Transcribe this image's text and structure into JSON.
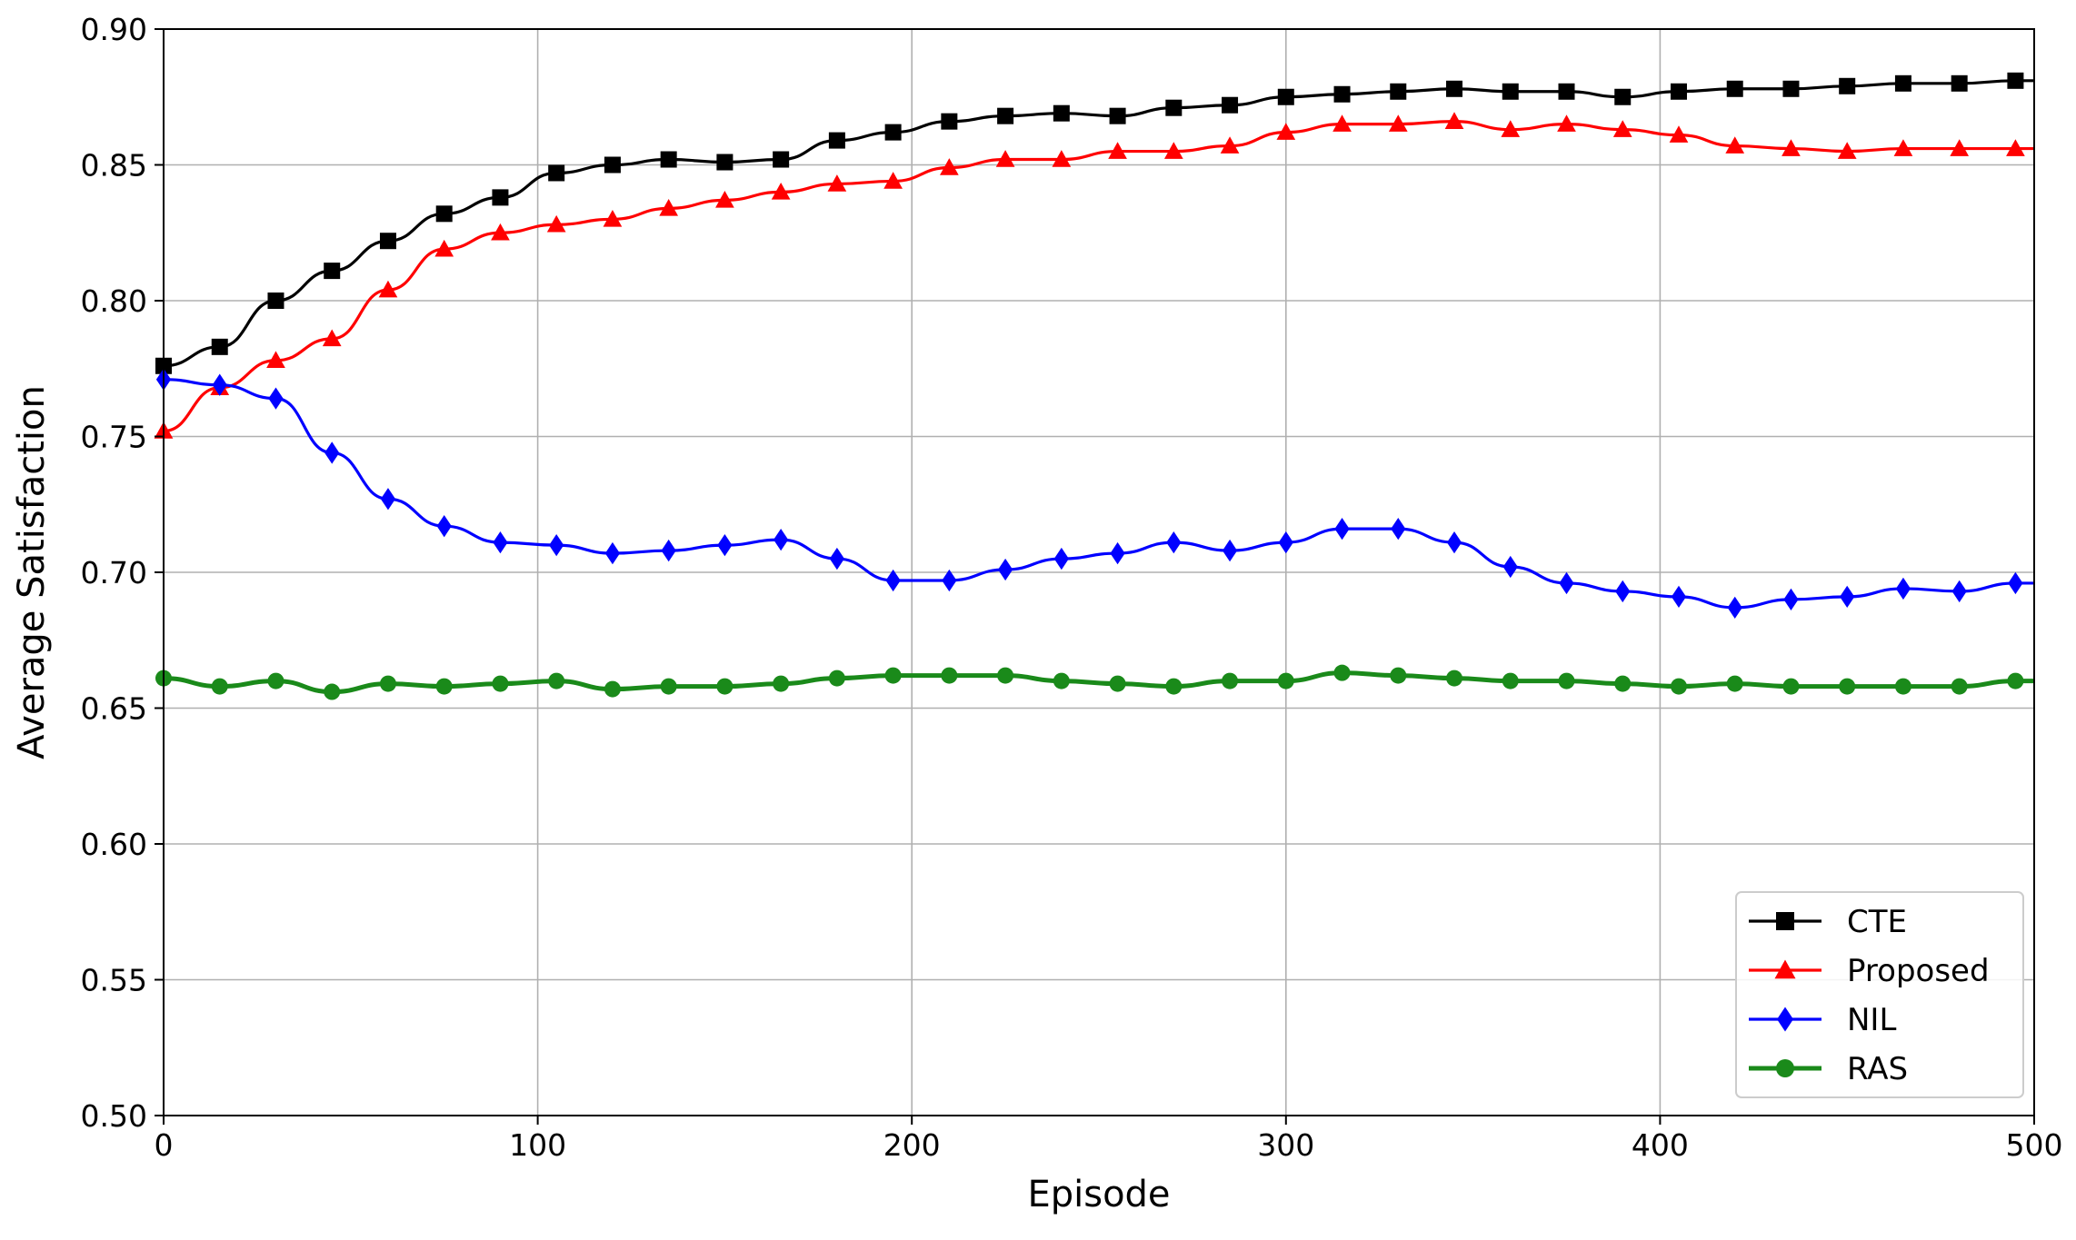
{
  "chart_data": {
    "type": "line",
    "title": "",
    "xlabel": "Episode",
    "ylabel": "Average Satisfaction",
    "xlim": [
      0,
      500
    ],
    "ylim": [
      0.5,
      0.9
    ],
    "x_ticks": [
      0,
      100,
      200,
      300,
      400,
      500
    ],
    "x_tick_labels": [
      "0",
      "100",
      "200",
      "300",
      "400",
      "500"
    ],
    "y_ticks": [
      0.5,
      0.55,
      0.6,
      0.65,
      0.7,
      0.75,
      0.8,
      0.85,
      0.9
    ],
    "y_tick_labels": [
      "0.50",
      "0.55",
      "0.60",
      "0.65",
      "0.70",
      "0.75",
      "0.80",
      "0.85",
      "0.90"
    ],
    "grid": true,
    "legend_position": "bottom-right",
    "x": [
      0,
      15,
      30,
      45,
      60,
      75,
      90,
      105,
      120,
      135,
      150,
      165,
      180,
      195,
      210,
      225,
      240,
      255,
      270,
      285,
      300,
      315,
      330,
      345,
      360,
      375,
      390,
      405,
      420,
      435,
      450,
      465,
      480,
      495
    ],
    "series": [
      {
        "name": "CTE",
        "color": "#000000",
        "marker": "square",
        "values": [
          0.776,
          0.783,
          0.8,
          0.811,
          0.822,
          0.832,
          0.838,
          0.847,
          0.85,
          0.852,
          0.851,
          0.852,
          0.859,
          0.862,
          0.866,
          0.868,
          0.869,
          0.868,
          0.871,
          0.872,
          0.875,
          0.876,
          0.877,
          0.878,
          0.877,
          0.877,
          0.875,
          0.877,
          0.878,
          0.878,
          0.879,
          0.88,
          0.88,
          0.881
        ]
      },
      {
        "name": "Proposed",
        "color": "#ff0000",
        "marker": "triangle",
        "values": [
          0.752,
          0.768,
          0.778,
          0.786,
          0.804,
          0.819,
          0.825,
          0.828,
          0.83,
          0.834,
          0.837,
          0.84,
          0.843,
          0.844,
          0.849,
          0.852,
          0.852,
          0.855,
          0.855,
          0.857,
          0.862,
          0.865,
          0.865,
          0.866,
          0.863,
          0.865,
          0.863,
          0.861,
          0.857,
          0.856,
          0.855,
          0.856,
          0.856,
          0.856
        ]
      },
      {
        "name": "NIL",
        "color": "#0000ff",
        "marker": "diamond",
        "values": [
          0.771,
          0.769,
          0.764,
          0.744,
          0.727,
          0.717,
          0.711,
          0.71,
          0.707,
          0.708,
          0.71,
          0.712,
          0.705,
          0.697,
          0.697,
          0.701,
          0.705,
          0.707,
          0.711,
          0.708,
          0.711,
          0.716,
          0.716,
          0.711,
          0.702,
          0.696,
          0.693,
          0.691,
          0.687,
          0.69,
          0.691,
          0.694,
          0.693,
          0.696
        ]
      },
      {
        "name": "RAS",
        "color": "#1a8a1a",
        "marker": "circle",
        "values": [
          0.661,
          0.658,
          0.66,
          0.656,
          0.659,
          0.658,
          0.659,
          0.66,
          0.657,
          0.658,
          0.658,
          0.659,
          0.661,
          0.662,
          0.662,
          0.662,
          0.66,
          0.659,
          0.658,
          0.66,
          0.66,
          0.663,
          0.662,
          0.661,
          0.66,
          0.66,
          0.659,
          0.658,
          0.659,
          0.658,
          0.658,
          0.658,
          0.658,
          0.66
        ]
      }
    ]
  }
}
